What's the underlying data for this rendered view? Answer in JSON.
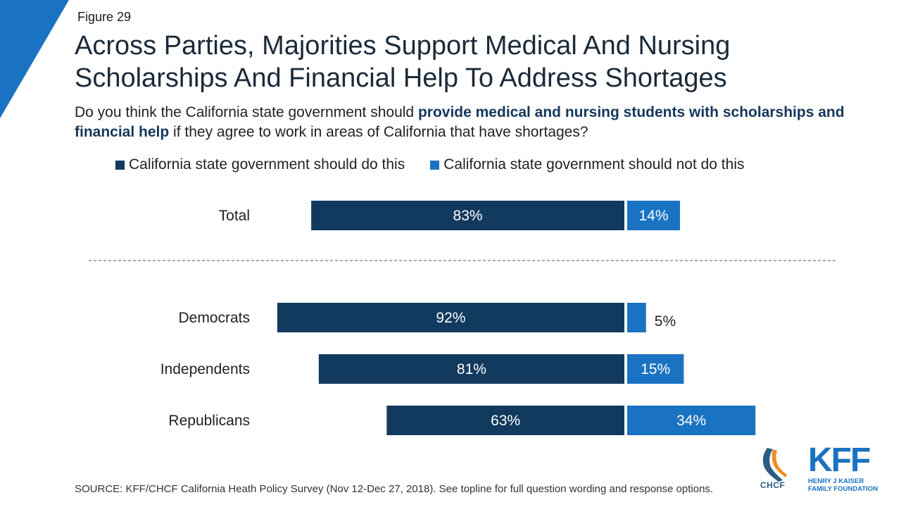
{
  "header": {
    "figure_label": "Figure 29",
    "title_line1": "Across Parties, Majorities Support Medical And Nursing",
    "title_line2": "Scholarships And Financial Help To Address Shortages"
  },
  "question": {
    "part1": "Do you think the California state government should ",
    "highlight": "provide medical and nursing students with scholarships and financial help",
    "part2": " if they agree to work in areas of California that have shortages?"
  },
  "colors": {
    "do": "#123a5e",
    "not_do": "#1a73c2",
    "accent_triangle": "#1a73c2"
  },
  "chart_data": {
    "type": "bar",
    "orientation": "horizontal",
    "stacked": "diverging",
    "categories": [
      "Total",
      "Democrats",
      "Independents",
      "Republicans"
    ],
    "series": [
      {
        "name": "California state government should do this",
        "values": [
          83,
          92,
          81,
          63
        ]
      },
      {
        "name": "California state government should not do this",
        "values": [
          14,
          5,
          15,
          34
        ]
      }
    ],
    "data_labels": {
      "do": [
        "83%",
        "92%",
        "81%",
        "63%"
      ],
      "not_do": [
        "14%",
        "5%",
        "15%",
        "34%"
      ]
    },
    "legend_placement": "top",
    "separator_after": "Total"
  },
  "footer": {
    "source": "SOURCE: KFF/CHCF California Heath Policy Survey (Nov 12-Dec 27, 2018). See topline for full question wording and response options.",
    "chcf_logo_text": "CHCF",
    "kff_logo_text": "KFF",
    "kff_sub_line1": "HENRY J KAISER",
    "kff_sub_line2": "FAMILY FOUNDATION"
  }
}
